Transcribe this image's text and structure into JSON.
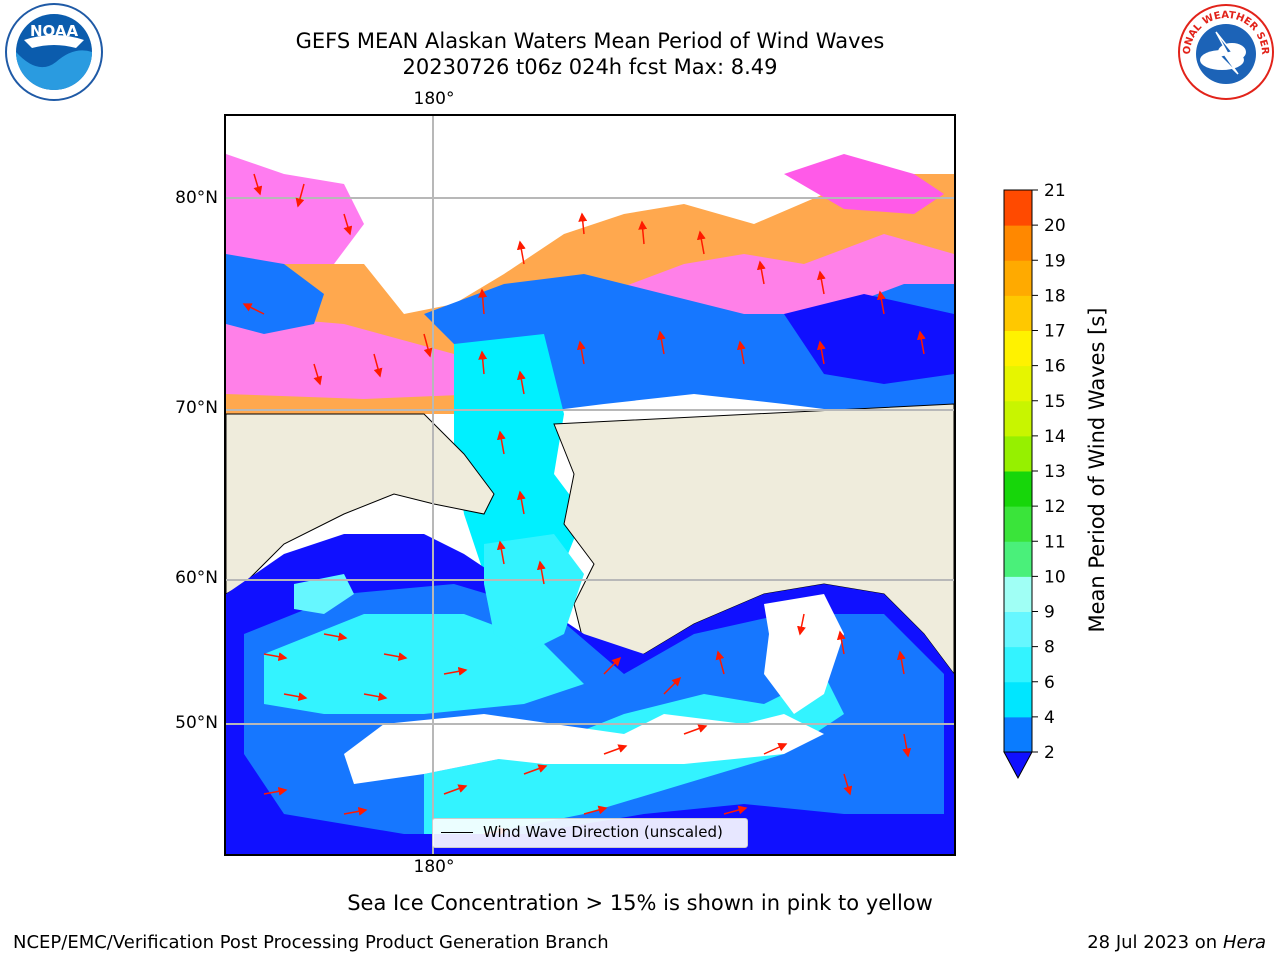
{
  "title_line1": "GEFS MEAN Alaskan Waters Mean Period of Wind Waves",
  "title_line2": "20230726 t06z 024h fcst   Max: 8.49",
  "lon_label": "180°",
  "lat_labels": [
    "80°N",
    "70°N",
    "60°N",
    "50°N"
  ],
  "legend_label": "Wind Wave Direction (unscaled)",
  "colorbar": {
    "label": "Mean Period of Wind Waves [s]",
    "ticks": [
      "2",
      "4",
      "6",
      "8",
      "9",
      "10",
      "11",
      "12",
      "13",
      "14",
      "15",
      "16",
      "17",
      "18",
      "19",
      "20",
      "21"
    ],
    "colors": [
      "#0a7cff",
      "#00e6ff",
      "#33f3ff",
      "#66f7ff",
      "#a0fff5",
      "#4af07a",
      "#3ae43a",
      "#17d60a",
      "#96f000",
      "#c8f500",
      "#e6f500",
      "#fff200",
      "#ffc800",
      "#ffaa00",
      "#ff8800",
      "#ff4a00",
      "#ff1a00"
    ],
    "extend_color": "#1010ff"
  },
  "caption": "Sea Ice Concentration > 15% is shown in pink to yellow",
  "footer_left": "NCEP/EMC/Verification Post Processing Product Generation Branch",
  "footer_right_date": "28 Jul 2023 on ",
  "footer_right_host": "Hera",
  "logos": {
    "noaa": "NOAA",
    "nws": "NATIONAL WEATHER SERVICE"
  }
}
